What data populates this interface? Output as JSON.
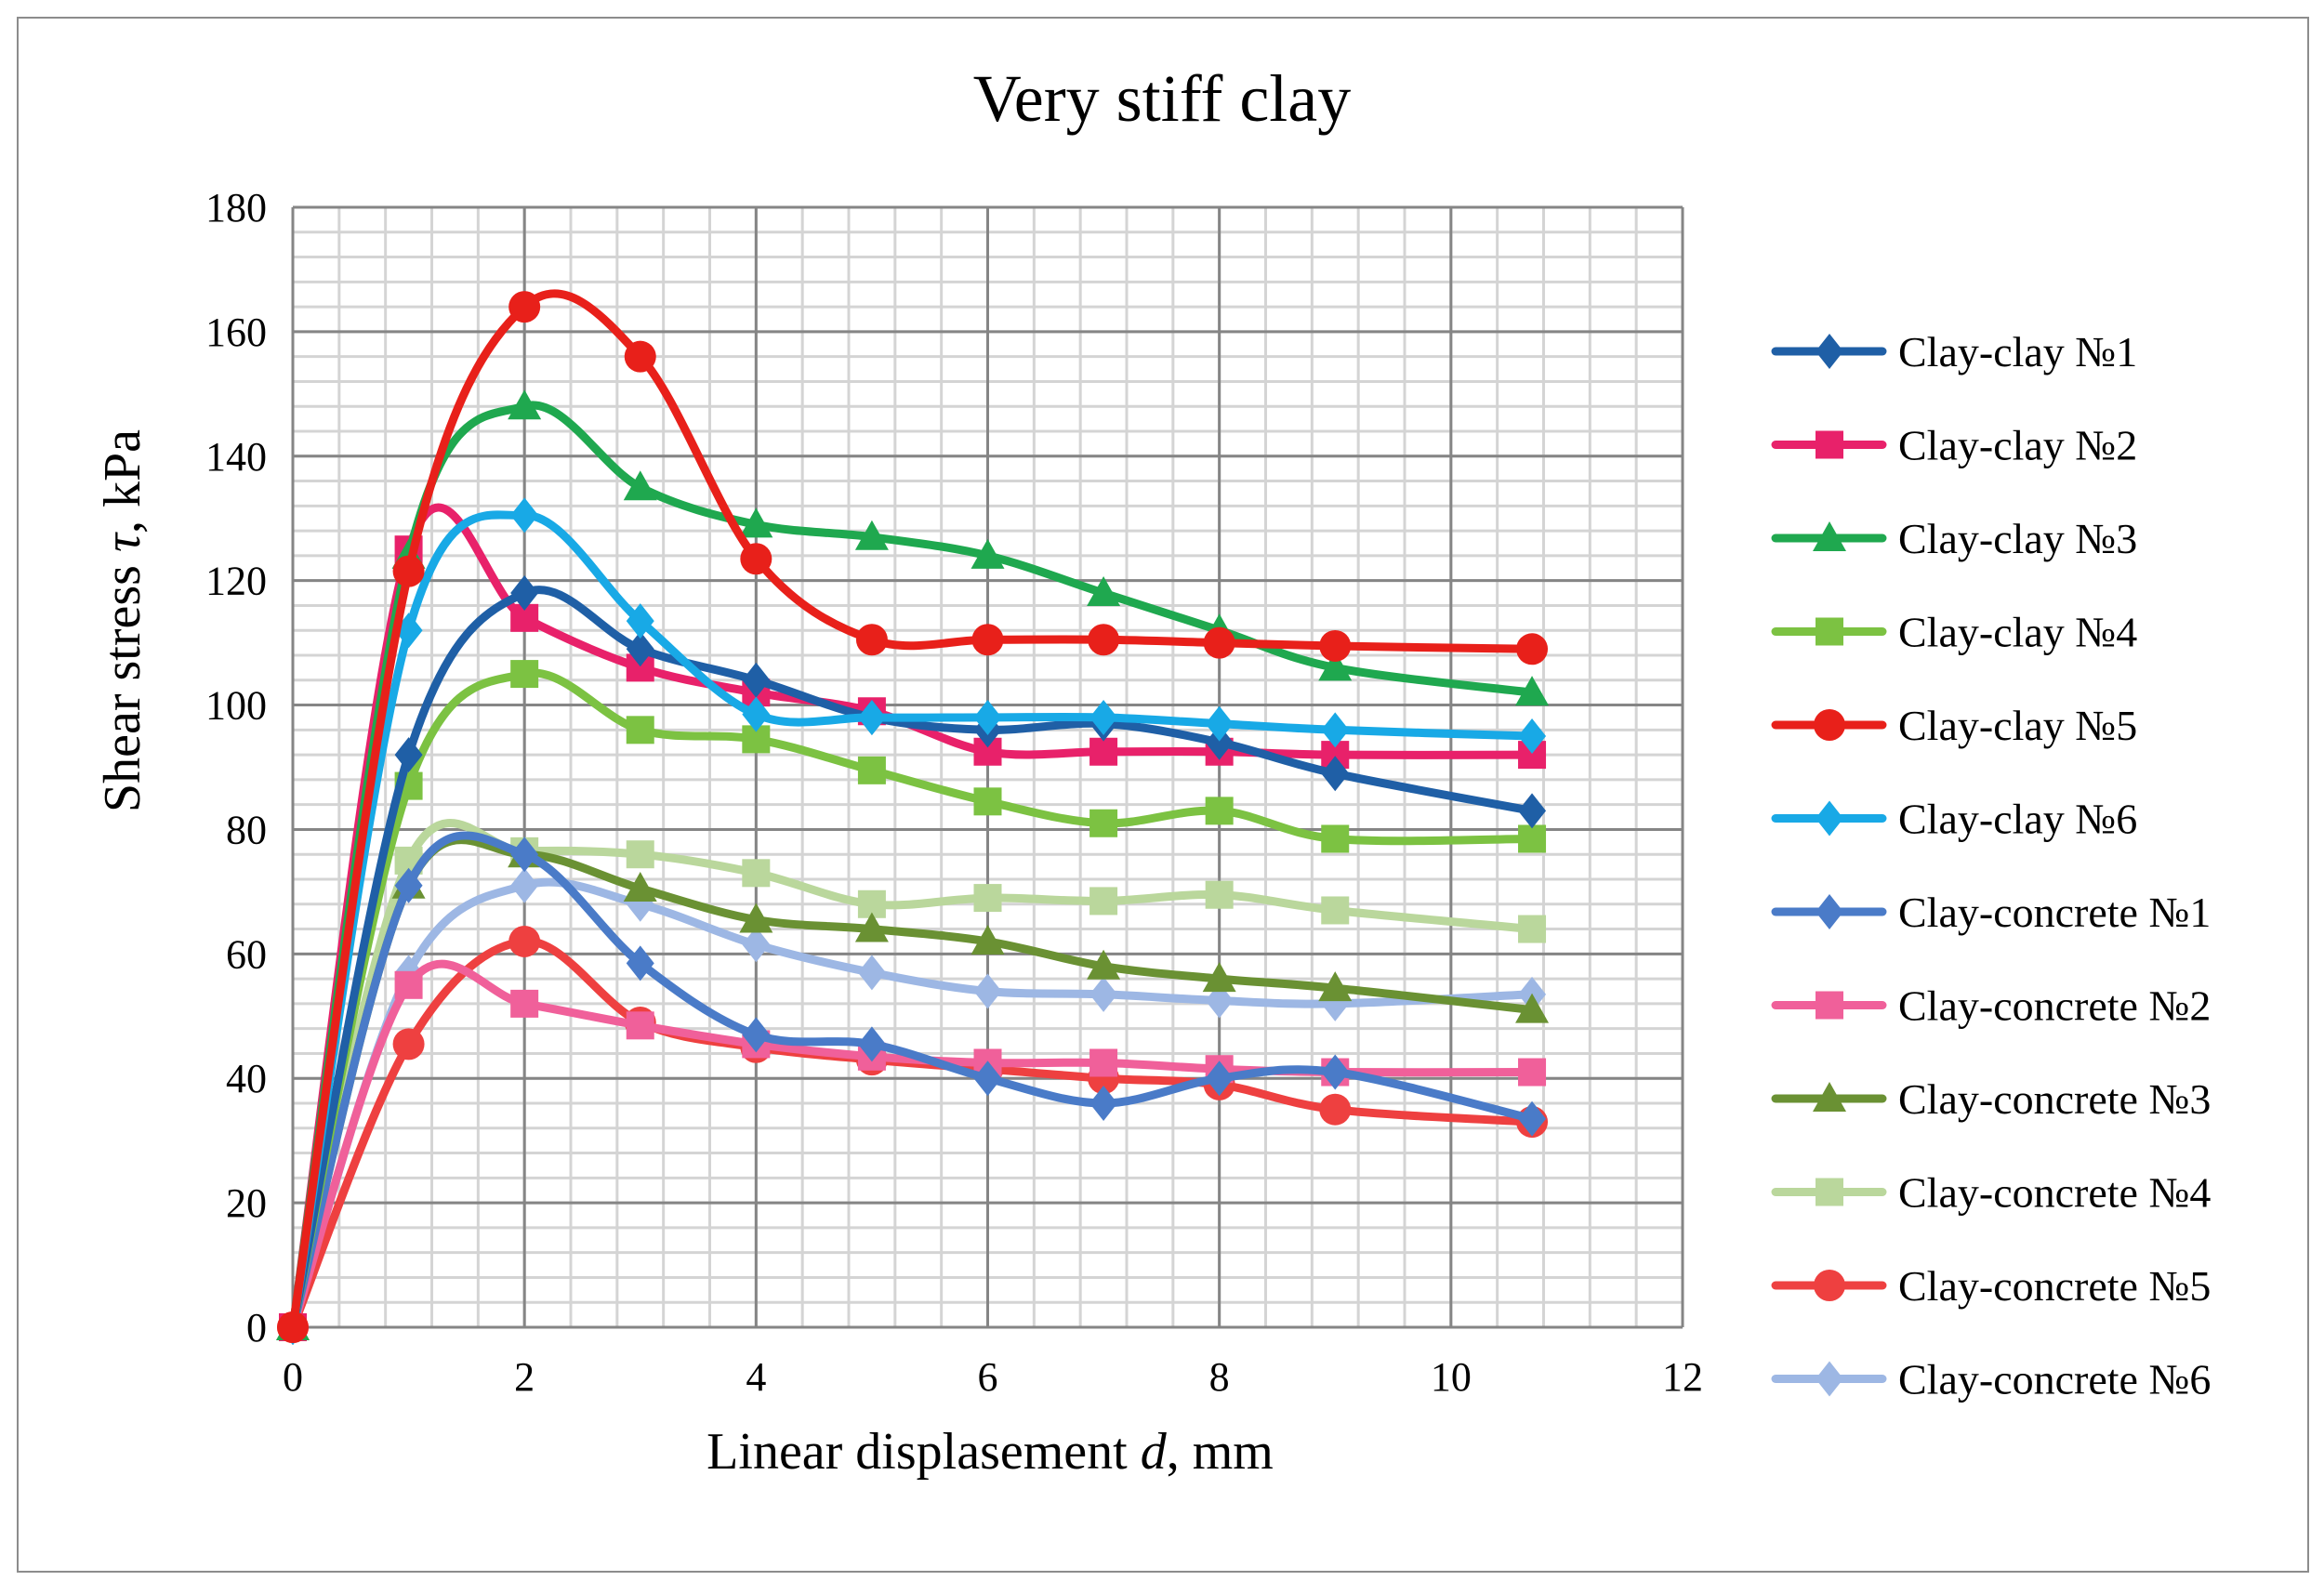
{
  "chart_data": {
    "type": "line",
    "title": "Very stiff clay",
    "ylabel": {
      "prefix": "Shear stress ",
      "symbol": "τ",
      "suffix": ",  kPa"
    },
    "xlabel": {
      "prefix": "Linear displasement ",
      "symbol": "d",
      "suffix": ", mm"
    },
    "xlim": [
      0,
      12
    ],
    "ylim": [
      0,
      180
    ],
    "xticks": [
      0,
      2,
      4,
      6,
      8,
      10,
      12
    ],
    "yticks": [
      0,
      20,
      40,
      60,
      80,
      100,
      120,
      140,
      160,
      180
    ],
    "minor_x_step": 0.4,
    "minor_y_step": 4,
    "grid": true,
    "legend_position": "right",
    "x": [
      0,
      1,
      2,
      3,
      4,
      5,
      6,
      7,
      8,
      9,
      10.7
    ],
    "series": [
      {
        "name": "Clay-clay №1",
        "color": "#1F5FA6",
        "marker": "diamond",
        "values": [
          0,
          92,
          118,
          109,
          104,
          98,
          96,
          97,
          94,
          89,
          83
        ]
      },
      {
        "name": "Clay-clay №2",
        "color": "#E8216A",
        "marker": "square",
        "values": [
          0,
          125,
          114,
          106,
          102,
          99,
          92.5,
          92.5,
          92.5,
          92,
          92
        ]
      },
      {
        "name": "Clay-clay №3",
        "color": "#1FA84F",
        "marker": "triangle",
        "values": [
          0,
          124,
          148,
          135,
          129,
          127,
          124,
          118,
          112,
          106,
          102
        ]
      },
      {
        "name": "Clay-clay №4",
        "color": "#7CC242",
        "marker": "square",
        "values": [
          0,
          87,
          105,
          96,
          94.5,
          89.5,
          84.5,
          81,
          83,
          78.5,
          78.5
        ]
      },
      {
        "name": "Clay-clay №5",
        "color": "#E8201A",
        "marker": "circle",
        "values": [
          0,
          121.5,
          164,
          156,
          123.5,
          110.5,
          110.5,
          110.5,
          110,
          109.5,
          109
        ]
      },
      {
        "name": "Clay-clay №6",
        "color": "#18A9E6",
        "marker": "diamond",
        "values": [
          0,
          112,
          130.5,
          113.5,
          98.5,
          98,
          98,
          98,
          97,
          96,
          95
        ]
      },
      {
        "name": "Clay-concrete №1",
        "color": "#4A7BC8",
        "marker": "diamond",
        "values": [
          0,
          71,
          76,
          58.5,
          47,
          45.5,
          40,
          36,
          40,
          41,
          33.5
        ]
      },
      {
        "name": "Clay-concrete №2",
        "color": "#F0609A",
        "marker": "square",
        "values": [
          0,
          55,
          52,
          48.5,
          45.5,
          43.5,
          42.5,
          42.5,
          41.5,
          41,
          41
        ]
      },
      {
        "name": "Clay-concrete №3",
        "color": "#6A9133",
        "marker": "triangle",
        "values": [
          0,
          71,
          76,
          70.5,
          65.5,
          64,
          62,
          58,
          56,
          54.5,
          51
        ]
      },
      {
        "name": "Clay-concrete №4",
        "color": "#BAD79C",
        "marker": "square",
        "values": [
          0,
          75,
          76.5,
          76,
          73,
          68,
          69,
          68.5,
          69.5,
          67,
          64
        ]
      },
      {
        "name": "Clay-concrete №5",
        "color": "#EE4040",
        "marker": "circle",
        "values": [
          0,
          45.5,
          62,
          49,
          45,
          43,
          41.5,
          40,
          39,
          35,
          33
        ]
      },
      {
        "name": "Clay-concrete №6",
        "color": "#9DB7E4",
        "marker": "diamond",
        "values": [
          0,
          57,
          71,
          68,
          61.5,
          57,
          54,
          53.5,
          52.5,
          52,
          53.5
        ]
      }
    ]
  }
}
